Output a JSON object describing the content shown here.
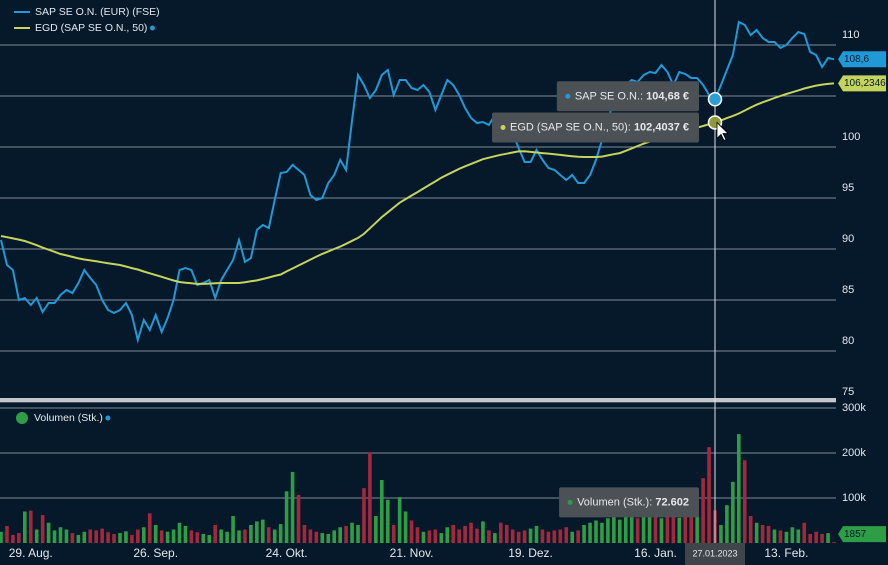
{
  "chart_data": {
    "type": "stock",
    "categories": [
      null,
      null,
      null,
      null,
      null,
      "29. Aug.",
      null,
      null,
      null,
      null,
      null,
      null,
      null,
      null,
      null,
      null,
      null,
      null,
      null,
      null,
      null,
      null,
      null,
      null,
      null,
      null,
      "26. Sep.",
      null,
      null,
      null,
      null,
      null,
      null,
      null,
      null,
      null,
      null,
      null,
      null,
      null,
      null,
      null,
      null,
      null,
      null,
      null,
      null,
      null,
      "24. Okt.",
      null,
      null,
      null,
      null,
      null,
      null,
      null,
      null,
      null,
      null,
      null,
      null,
      null,
      null,
      null,
      null,
      null,
      null,
      null,
      null,
      "21. Nov.",
      null,
      null,
      null,
      null,
      null,
      null,
      null,
      null,
      null,
      null,
      null,
      null,
      null,
      null,
      null,
      null,
      null,
      null,
      null,
      "19. Dez.",
      null,
      null,
      null,
      null,
      null,
      null,
      null,
      null,
      null,
      null,
      null,
      null,
      null,
      null,
      null,
      null,
      null,
      null,
      null,
      null,
      "16. Jan.",
      null,
      null,
      null,
      null,
      null,
      null,
      null,
      null,
      null,
      null,
      null,
      null,
      null,
      null,
      null,
      null,
      null,
      null,
      null,
      null,
      null,
      "13. Feb.",
      null,
      null,
      null,
      null,
      null,
      null,
      null,
      null
    ],
    "series": [
      {
        "name": "SAP SE O.N. (EUR) (FSE)",
        "color": "#1f9ad6",
        "last_label": "108,6",
        "values": [
          90.88,
          88.43,
          87.94,
          85.0,
          85.2,
          84.51,
          85.2,
          83.82,
          84.71,
          84.71,
          85.49,
          85.98,
          85.69,
          86.67,
          87.94,
          87.16,
          86.47,
          85.0,
          84.02,
          83.73,
          84.02,
          84.71,
          83.53,
          81.08,
          83.04,
          82.06,
          83.53,
          81.86,
          83.24,
          85.0,
          87.94,
          88.14,
          87.94,
          86.47,
          86.67,
          86.96,
          85.2,
          86.96,
          87.94,
          88.92,
          90.88,
          88.73,
          89.12,
          91.86,
          92.35,
          92.06,
          94.8,
          97.45,
          97.55,
          98.24,
          97.75,
          97.25,
          95.29,
          94.8,
          95.0,
          96.47,
          97.25,
          98.73,
          97.75,
          102.65,
          107.06,
          106.08,
          104.8,
          105.59,
          107.06,
          107.55,
          105.1,
          106.57,
          106.57,
          105.78,
          105.59,
          106.08,
          105.39,
          103.63,
          105.1,
          106.57,
          106.08,
          105.1,
          103.82,
          102.84,
          102.35,
          102.45,
          102.16,
          103.14,
          102.84,
          102.16,
          101.37,
          99.9,
          98.53,
          98.53,
          99.71,
          98.73,
          97.94,
          97.75,
          97.25,
          96.76,
          97.25,
          96.47,
          96.47,
          97.25,
          98.73,
          100.69,
          102.65,
          104.61,
          105.59,
          106.08,
          106.57,
          106.37,
          107.06,
          107.35,
          107.25,
          108.04,
          107.35,
          106.08,
          107.35,
          107.16,
          106.76,
          106.76,
          106.08,
          105.1,
          104.68,
          106.08,
          107.55,
          109.02,
          112.25,
          111.96,
          110.98,
          111.47,
          110.69,
          110.29,
          110.29,
          109.71,
          110.0,
          110.69,
          111.27,
          111.08,
          109.31,
          109.02,
          107.84,
          108.73,
          108.6
        ]
      },
      {
        "name": "EGD (SAP SE O.N., 50)",
        "color": "#c5d45a",
        "last_label": "106,2346",
        "values": [
          91.27,
          91.16,
          91.04,
          90.92,
          90.78,
          90.58,
          90.37,
          90.14,
          89.93,
          89.72,
          89.51,
          89.37,
          89.22,
          89.08,
          88.97,
          88.88,
          88.79,
          88.7,
          88.61,
          88.52,
          88.43,
          88.28,
          88.13,
          87.99,
          87.79,
          87.62,
          87.44,
          87.27,
          87.09,
          86.91,
          86.76,
          86.7,
          86.64,
          86.58,
          86.58,
          86.61,
          86.64,
          86.67,
          86.67,
          86.67,
          86.67,
          86.74,
          86.83,
          86.92,
          87.06,
          87.21,
          87.36,
          87.5,
          87.8,
          88.09,
          88.38,
          88.67,
          88.96,
          89.25,
          89.52,
          89.76,
          90.0,
          90.23,
          90.51,
          90.8,
          91.09,
          91.48,
          92.03,
          92.58,
          93.13,
          93.6,
          94.07,
          94.54,
          94.89,
          95.24,
          95.58,
          95.93,
          96.28,
          96.63,
          96.99,
          97.28,
          97.57,
          97.86,
          98.11,
          98.34,
          98.57,
          98.8,
          98.95,
          99.1,
          99.23,
          99.34,
          99.46,
          99.57,
          99.58,
          99.52,
          99.46,
          99.4,
          99.35,
          99.29,
          99.22,
          99.16,
          99.1,
          99.04,
          99.02,
          99.02,
          99.02,
          99.06,
          99.18,
          99.29,
          99.4,
          99.63,
          99.86,
          100.1,
          100.32,
          100.52,
          100.73,
          100.92,
          101.09,
          101.27,
          101.44,
          101.61,
          101.76,
          101.9,
          102.06,
          102.23,
          102.4037,
          102.61,
          102.83,
          103.05,
          103.28,
          103.58,
          103.87,
          104.15,
          104.38,
          104.59,
          104.8,
          105.01,
          105.19,
          105.37,
          105.55,
          105.73,
          105.88,
          106.02,
          106.12,
          106.18,
          106.2346
        ]
      }
    ],
    "ylim": [
      75,
      114.41
    ],
    "yticks": [
      75,
      80,
      85,
      90,
      95,
      100,
      105,
      110
    ],
    "grid": true,
    "volume": {
      "name": "Volumen (Stk.)",
      "color": "#2e9e46",
      "down_color": "#a3283d",
      "last_label": "1857",
      "ylim": [
        0,
        309000
      ],
      "yticks": [
        {
          "value": 100000,
          "label": "100k"
        },
        {
          "value": 200000,
          "label": "200k"
        },
        {
          "value": 300000,
          "label": "300k"
        }
      ],
      "values": [
        25000,
        38000,
        18000,
        22000,
        70000,
        72000,
        30000,
        62000,
        45000,
        28000,
        35000,
        30000,
        22000,
        18000,
        25000,
        30000,
        28000,
        32000,
        24000,
        20000,
        22000,
        26000,
        18000,
        30000,
        35000,
        66000,
        40000,
        28000,
        25000,
        30000,
        45000,
        38000,
        28000,
        24000,
        20000,
        18000,
        40000,
        30000,
        25000,
        60000,
        28000,
        30000,
        40000,
        48000,
        52000,
        35000,
        30000,
        42000,
        115000,
        158000,
        107000,
        40000,
        30000,
        25000,
        22000,
        20000,
        28000,
        35000,
        38000,
        45000,
        40000,
        122000,
        202000,
        60000,
        140000,
        96000,
        40000,
        102000,
        70000,
        50000,
        35000,
        25000,
        28000,
        30000,
        22000,
        35000,
        40000,
        30000,
        38000,
        45000,
        32000,
        48000,
        28000,
        22000,
        45000,
        40000,
        30000,
        25000,
        28000,
        32000,
        38000,
        30000,
        25000,
        28000,
        30000,
        35000,
        25000,
        28000,
        40000,
        45000,
        50000,
        45000,
        55000,
        60000,
        52000,
        58000,
        62000,
        55000,
        60000,
        58000,
        62000,
        55000,
        60000,
        58000,
        56000,
        62000,
        58000,
        65000,
        144000,
        213000,
        72602,
        40000,
        84000,
        136000,
        242000,
        184000,
        60000,
        45000,
        40000,
        38000,
        30000,
        28000,
        25000,
        35000,
        30000,
        45000,
        20000,
        25000,
        20000,
        22000,
        1857
      ]
    },
    "crosshair": {
      "label": "27.01.2023",
      "tooltips": [
        {
          "label": "SAP SE O.N.:",
          "value": 104.68,
          "value_label": "104,68 €"
        },
        {
          "label": "EGD (SAP SE O.N., 50):",
          "value": 102.4037,
          "value_label": "102,4037 €"
        },
        {
          "label": "Volumen (Stk.):",
          "value": 72602,
          "value_label": "72.602"
        }
      ]
    }
  }
}
